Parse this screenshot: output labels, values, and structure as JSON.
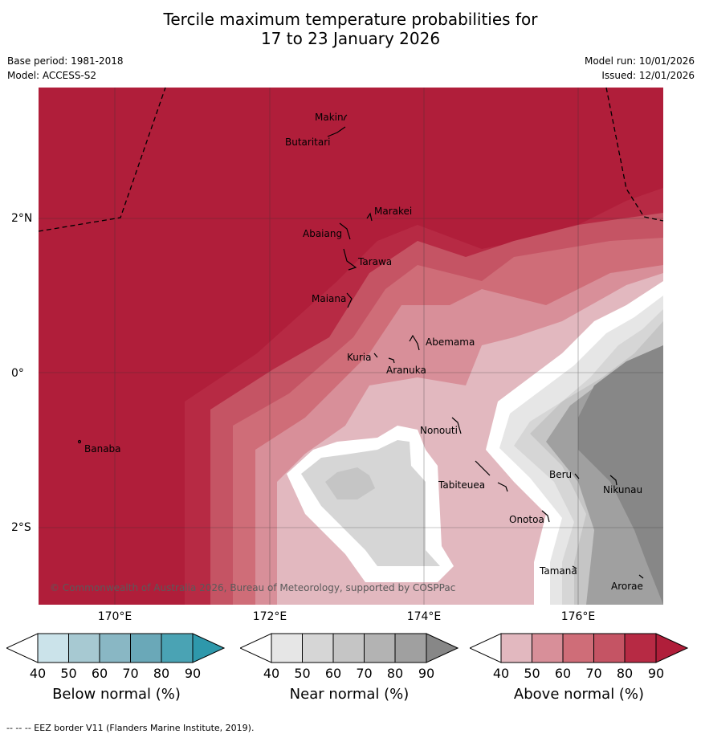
{
  "title_line1": "Tercile maximum temperature probabilities for",
  "title_line2": "17 to 23 January 2026",
  "base_period": "Base period: 1981-2018",
  "model": "Model: ACCESS-S2",
  "model_run": "Model run: 10/01/2026",
  "issued": "Issued: 12/01/2026",
  "copyright": "© Commonwealth of Australia 2026, Bureau of Meteorology, supported by COSPPac",
  "longitude_labels": [
    "170°E",
    "172°E",
    "174°E",
    "176°E"
  ],
  "latitude_labels": [
    "2°N",
    "0°",
    "2°S"
  ],
  "places": [
    "Makin",
    "Butaritari",
    "Marakei",
    "Abaiang",
    "Tarawa",
    "Maiana",
    "Abemama",
    "Kuria",
    "Aranuka",
    "Nonouti",
    "Banaba",
    "Beru",
    "Nikunau",
    "Tabiteuea",
    "Onotoa",
    "Tamana",
    "Arorae"
  ],
  "colorbars": [
    {
      "title": "Below normal (%)",
      "ticks": [
        "40",
        "50",
        "60",
        "70",
        "80",
        "90"
      ],
      "colors": [
        "#ffffff",
        "#cbe3ea",
        "#a7c9d2",
        "#89b7c4",
        "#6aa8b8",
        "#4aa3b4",
        "#2e98ab"
      ]
    },
    {
      "title": "Near normal (%)",
      "ticks": [
        "40",
        "50",
        "60",
        "70",
        "80",
        "90"
      ],
      "colors": [
        "#ffffff",
        "#e6e6e6",
        "#d6d6d6",
        "#c5c5c5",
        "#b3b3b3",
        "#a0a0a0",
        "#878787"
      ]
    },
    {
      "title": "Above normal (%)",
      "ticks": [
        "40",
        "50",
        "60",
        "70",
        "80",
        "90"
      ],
      "colors": [
        "#ffffff",
        "#e2b8bf",
        "#d88f99",
        "#cf6d78",
        "#c55464",
        "#b72a44",
        "#b01e3a"
      ]
    }
  ],
  "footer": "--  --  -- EEZ border V11 (Flanders Marine Institute, 2019)."
}
